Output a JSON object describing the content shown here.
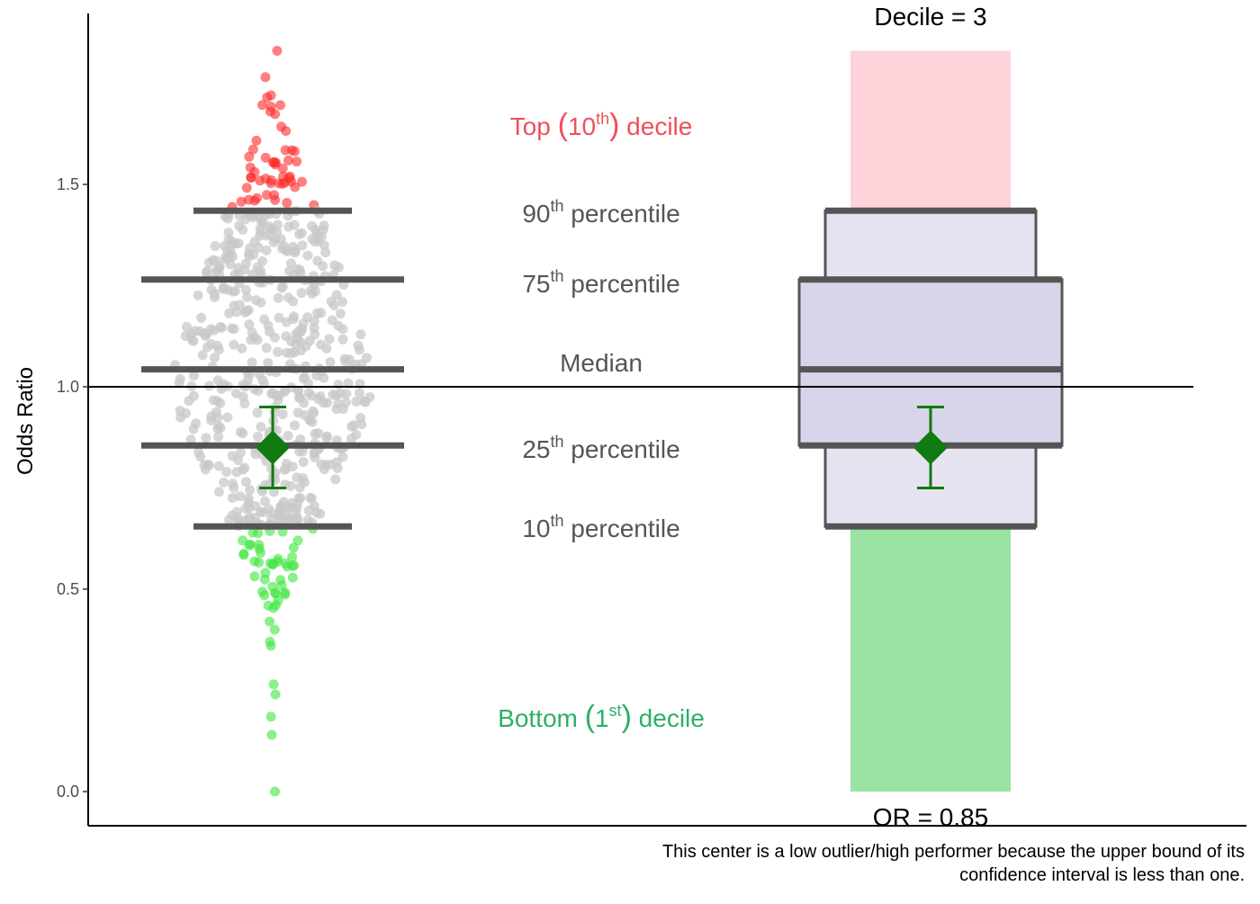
{
  "chart_data": {
    "type": "scatter",
    "ylabel": "Odds Ratio",
    "ylim": [
      -0.09,
      1.9
    ],
    "yticks": [
      0.0,
      0.5,
      1.0,
      1.5
    ],
    "ytick_labels": [
      "0.0",
      "0.5",
      "1.0",
      "1.5"
    ],
    "reference_line": 1.0,
    "percentiles": {
      "p10": 0.655,
      "p25": 0.855,
      "median": 1.043,
      "p75": 1.265,
      "p90": 1.435
    },
    "percentile_labels": {
      "p90": {
        "base": "90",
        "sup": "th",
        "rest": " percentile"
      },
      "p75": {
        "base": "75",
        "sup": "th",
        "rest": " percentile"
      },
      "median": {
        "base": "Median",
        "sup": "",
        "rest": ""
      },
      "p25": {
        "base": "25",
        "sup": "th",
        "rest": " percentile"
      },
      "p10": {
        "base": "10",
        "sup": "th",
        "rest": " percentile"
      }
    },
    "top_decile_label": {
      "pre": "Top ",
      "paren_open": "(",
      "base": "10",
      "sup": "th",
      "paren_close": ")",
      "post": " decile"
    },
    "bottom_decile_label": {
      "pre": "Bottom ",
      "paren_open": "(",
      "base": "1",
      "sup": "st",
      "paren_close": ")",
      "post": " decile"
    },
    "center": {
      "or": 0.85,
      "ci_lower": 0.75,
      "ci_upper": 0.95
    },
    "distribution": {
      "min": 0.0,
      "max": 1.83,
      "n_points": 600,
      "outliers_low": [
        0.0,
        0.14,
        0.185,
        0.24,
        0.265,
        0.36,
        0.37,
        0.4,
        0.42
      ],
      "outliers_high": [
        1.83,
        1.765,
        1.72,
        1.715
      ]
    },
    "panel_title": "Decile = 3",
    "or_text": "OR = 0.85",
    "caption_lines": [
      "This center is a low outlier/high performer because the upper bound of its",
      "confidence interval is less than one."
    ],
    "colors": {
      "high_points": "#ff2a2a",
      "low_points": "#3ee63e",
      "mid_points": "#c8c8c8",
      "percentile_bars": "#555555",
      "center_marker": "#117a11",
      "top_bar": "#ffd3da",
      "bottom_bar": "#9be3a3",
      "box_outer": "#e6e4f0",
      "box_inner": "#d7d5e9",
      "top_label": "#f0505a",
      "bottom_label": "#2eb062",
      "reference_line": "#000000"
    }
  }
}
